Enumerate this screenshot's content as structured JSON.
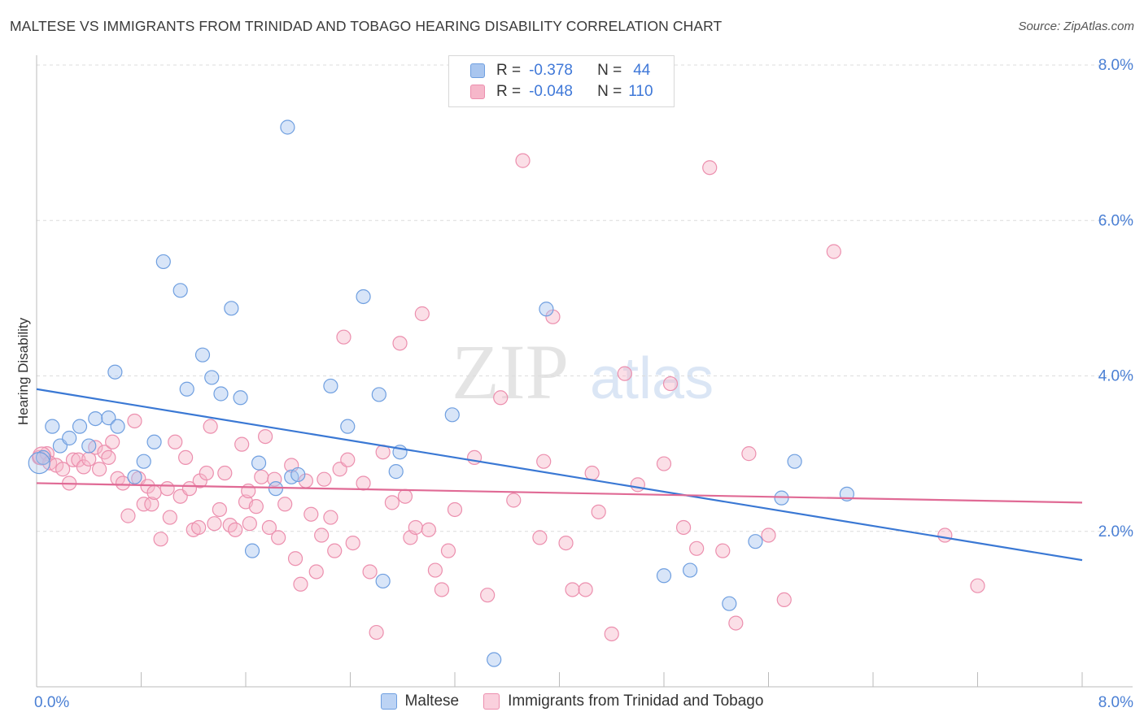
{
  "title": "MALTESE VS IMMIGRANTS FROM TRINIDAD AND TOBAGO HEARING DISABILITY CORRELATION CHART",
  "source": "Source: ZipAtlas.com",
  "watermark": {
    "zip": "ZIP",
    "atlas": "atlas"
  },
  "legend": {
    "rows": [
      {
        "r_label": "R =",
        "r_value": "-0.378",
        "n_label": "N =",
        "n_value": "44"
      },
      {
        "r_label": "R =",
        "r_value": "-0.048",
        "n_label": "N =",
        "n_value": "110"
      }
    ]
  },
  "bottom_legend": {
    "series1": "Maltese",
    "series2": "Immigrants from Trinidad and Tobago"
  },
  "colors": {
    "blue_fill": "#a9c6ef",
    "blue_stroke": "#6f9fe0",
    "blue_line": "#3a78d4",
    "pink_fill": "#f6b7ca",
    "pink_stroke": "#ec8fae",
    "pink_line": "#e06a95",
    "axis_text": "#4a7fd4"
  },
  "chart_data": {
    "type": "scatter",
    "title": "MALTESE VS IMMIGRANTS FROM TRINIDAD AND TOBAGO HEARING DISABILITY CORRELATION CHART",
    "xlabel": "",
    "ylabel": "Hearing Disability",
    "xlim": [
      0,
      8
    ],
    "ylim": [
      0,
      8
    ],
    "x_tick_labels": [
      "0.0%",
      "8.0%"
    ],
    "y_tick_labels": [
      "2.0%",
      "4.0%",
      "6.0%",
      "8.0%"
    ],
    "y_ticks": [
      2,
      4,
      6,
      8
    ],
    "grid": true,
    "legend_position": "top-center",
    "series": [
      {
        "name": "Maltese",
        "R": -0.378,
        "N": 44,
        "trend": {
          "x": [
            0,
            8
          ],
          "y": [
            3.83,
            1.63
          ]
        },
        "points": [
          [
            0.05,
            2.95
          ],
          [
            0.12,
            3.35
          ],
          [
            0.18,
            3.1
          ],
          [
            0.25,
            3.2
          ],
          [
            0.33,
            3.35
          ],
          [
            0.4,
            3.1
          ],
          [
            0.45,
            3.45
          ],
          [
            0.55,
            3.46
          ],
          [
            0.62,
            3.35
          ],
          [
            0.6,
            4.05
          ],
          [
            0.75,
            2.7
          ],
          [
            0.82,
            2.9
          ],
          [
            0.9,
            3.15
          ],
          [
            0.97,
            5.47
          ],
          [
            1.1,
            5.1
          ],
          [
            1.15,
            3.83
          ],
          [
            1.27,
            4.27
          ],
          [
            1.34,
            3.98
          ],
          [
            1.41,
            3.77
          ],
          [
            1.49,
            4.87
          ],
          [
            1.56,
            3.72
          ],
          [
            1.65,
            1.75
          ],
          [
            1.7,
            2.88
          ],
          [
            1.83,
            2.55
          ],
          [
            1.92,
            7.2
          ],
          [
            1.95,
            2.7
          ],
          [
            2.0,
            2.73
          ],
          [
            2.25,
            3.87
          ],
          [
            2.38,
            3.35
          ],
          [
            2.5,
            5.02
          ],
          [
            2.62,
            3.76
          ],
          [
            2.65,
            1.36
          ],
          [
            2.75,
            2.77
          ],
          [
            2.78,
            3.02
          ],
          [
            3.18,
            3.5
          ],
          [
            3.5,
            0.35
          ],
          [
            3.9,
            4.86
          ],
          [
            4.8,
            1.43
          ],
          [
            5.0,
            1.5
          ],
          [
            5.3,
            1.07
          ],
          [
            5.5,
            1.87
          ],
          [
            5.7,
            2.43
          ],
          [
            5.8,
            2.9
          ],
          [
            6.2,
            2.48
          ]
        ]
      },
      {
        "name": "Immigrants from Trinidad and Tobago",
        "R": -0.048,
        "N": 110,
        "trend": {
          "x": [
            0,
            8
          ],
          "y": [
            2.62,
            2.37
          ]
        },
        "points": [
          [
            0.02,
            2.95
          ],
          [
            0.08,
            3.0
          ],
          [
            0.1,
            2.88
          ],
          [
            0.15,
            2.85
          ],
          [
            0.2,
            2.8
          ],
          [
            0.25,
            2.62
          ],
          [
            0.28,
            2.92
          ],
          [
            0.32,
            2.92
          ],
          [
            0.36,
            2.83
          ],
          [
            0.4,
            2.93
          ],
          [
            0.45,
            3.08
          ],
          [
            0.48,
            2.8
          ],
          [
            0.52,
            3.02
          ],
          [
            0.55,
            2.95
          ],
          [
            0.58,
            3.15
          ],
          [
            0.62,
            2.68
          ],
          [
            0.66,
            2.62
          ],
          [
            0.7,
            2.2
          ],
          [
            0.75,
            3.42
          ],
          [
            0.78,
            2.68
          ],
          [
            0.82,
            2.35
          ],
          [
            0.85,
            2.58
          ],
          [
            0.88,
            2.35
          ],
          [
            0.9,
            2.5
          ],
          [
            0.95,
            1.9
          ],
          [
            1.0,
            2.55
          ],
          [
            1.02,
            2.18
          ],
          [
            1.06,
            3.15
          ],
          [
            1.1,
            2.45
          ],
          [
            1.14,
            2.95
          ],
          [
            1.17,
            2.55
          ],
          [
            1.2,
            2.02
          ],
          [
            1.25,
            2.65
          ],
          [
            1.3,
            2.75
          ],
          [
            1.33,
            3.35
          ],
          [
            1.36,
            2.1
          ],
          [
            1.4,
            2.28
          ],
          [
            1.44,
            2.75
          ],
          [
            1.48,
            2.08
          ],
          [
            1.52,
            2.02
          ],
          [
            1.57,
            3.12
          ],
          [
            1.6,
            2.38
          ],
          [
            1.63,
            2.1
          ],
          [
            1.68,
            2.32
          ],
          [
            1.72,
            2.7
          ],
          [
            1.75,
            3.22
          ],
          [
            1.78,
            2.05
          ],
          [
            1.82,
            2.67
          ],
          [
            1.85,
            1.92
          ],
          [
            1.9,
            2.35
          ],
          [
            1.95,
            2.85
          ],
          [
            1.98,
            1.65
          ],
          [
            2.02,
            1.32
          ],
          [
            2.06,
            2.65
          ],
          [
            2.1,
            2.22
          ],
          [
            2.14,
            1.48
          ],
          [
            2.18,
            1.95
          ],
          [
            2.2,
            2.67
          ],
          [
            2.25,
            2.18
          ],
          [
            2.28,
            1.75
          ],
          [
            2.32,
            2.8
          ],
          [
            2.35,
            4.5
          ],
          [
            2.38,
            2.92
          ],
          [
            2.42,
            1.85
          ],
          [
            2.5,
            2.62
          ],
          [
            2.55,
            1.48
          ],
          [
            2.6,
            0.7
          ],
          [
            2.65,
            3.02
          ],
          [
            2.72,
            2.37
          ],
          [
            2.78,
            4.42
          ],
          [
            2.82,
            2.45
          ],
          [
            2.86,
            1.92
          ],
          [
            2.9,
            2.05
          ],
          [
            2.95,
            4.8
          ],
          [
            3.0,
            2.02
          ],
          [
            3.05,
            1.5
          ],
          [
            3.1,
            1.25
          ],
          [
            3.15,
            1.75
          ],
          [
            3.2,
            2.28
          ],
          [
            3.35,
            2.95
          ],
          [
            3.45,
            1.18
          ],
          [
            3.55,
            3.72
          ],
          [
            3.65,
            2.4
          ],
          [
            3.72,
            6.77
          ],
          [
            3.85,
            1.92
          ],
          [
            3.88,
            2.9
          ],
          [
            3.95,
            4.76
          ],
          [
            4.05,
            1.85
          ],
          [
            4.1,
            1.25
          ],
          [
            4.2,
            1.25
          ],
          [
            4.25,
            2.75
          ],
          [
            4.3,
            2.25
          ],
          [
            4.4,
            0.68
          ],
          [
            4.5,
            4.03
          ],
          [
            4.8,
            2.87
          ],
          [
            4.85,
            3.9
          ],
          [
            4.95,
            2.05
          ],
          [
            5.05,
            1.78
          ],
          [
            5.15,
            6.68
          ],
          [
            5.25,
            1.75
          ],
          [
            5.35,
            0.82
          ],
          [
            5.45,
            3.0
          ],
          [
            5.6,
            1.95
          ],
          [
            5.72,
            1.12
          ],
          [
            6.1,
            5.6
          ],
          [
            6.95,
            1.95
          ],
          [
            7.2,
            1.3
          ],
          [
            4.6,
            2.6
          ],
          [
            1.24,
            2.05
          ],
          [
            1.62,
            2.52
          ]
        ]
      }
    ]
  }
}
